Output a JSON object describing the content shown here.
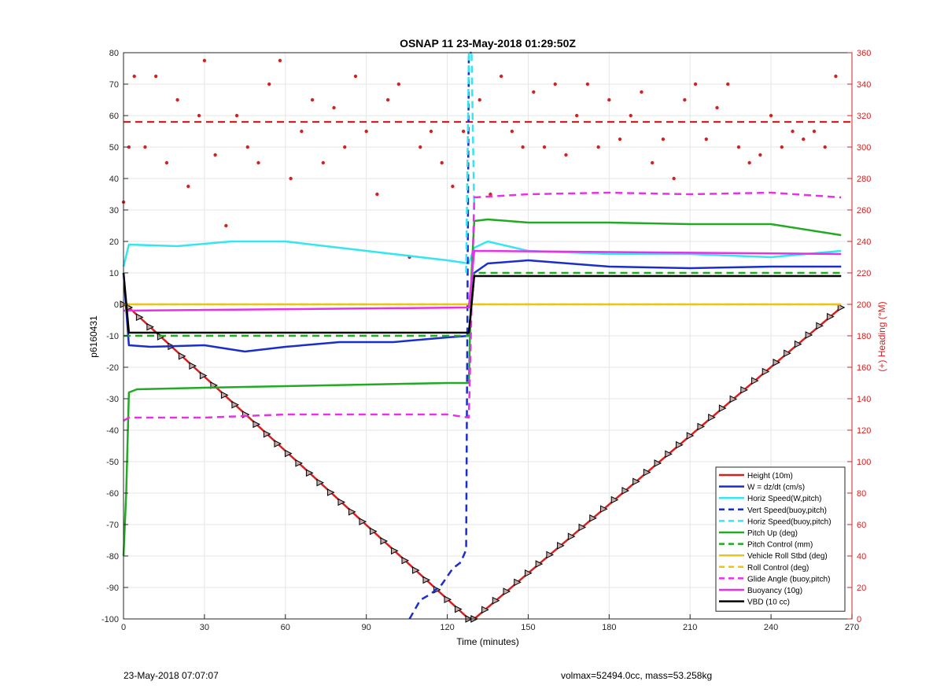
{
  "footer": {
    "left": "23-May-2018 07:07:07",
    "right": "volmax=52494.0cc, mass=53.258kg"
  },
  "chart_data": {
    "type": "line",
    "title": "OSNAP 11 23-May-2018 01:29:50Z",
    "xlabel": "Time (minutes)",
    "ylabel": "p6160431",
    "y2label": "(+) Heading (°M)",
    "xlim": [
      0,
      270
    ],
    "ylim": [
      -100,
      80
    ],
    "y2lim": [
      0,
      360
    ],
    "xticks": [
      0,
      30,
      60,
      90,
      120,
      150,
      180,
      210,
      240,
      270
    ],
    "yticks": [
      -100,
      -90,
      -80,
      -70,
      -60,
      -50,
      -40,
      -30,
      -20,
      -10,
      0,
      10,
      20,
      30,
      40,
      50,
      60,
      70,
      80
    ],
    "y2ticks": [
      0,
      20,
      40,
      60,
      80,
      100,
      120,
      140,
      160,
      180,
      200,
      220,
      240,
      260,
      280,
      300,
      320,
      340,
      360
    ],
    "grid": true,
    "legend_position": "bottom-right",
    "series": [
      {
        "name": "Height (10m)",
        "color": "#d62020",
        "style": "solid",
        "markers": "triangle",
        "x": [
          0,
          2,
          128,
          130,
          266
        ],
        "y": [
          0,
          -1,
          -100,
          -100,
          -1
        ]
      },
      {
        "name": "W = dz/dt (cm/s)",
        "color": "#1a2ecc",
        "style": "solid",
        "x": [
          0,
          2,
          10,
          30,
          45,
          60,
          80,
          100,
          120,
          128,
          130,
          135,
          150,
          180,
          210,
          240,
          266
        ],
        "y": [
          10,
          -13,
          -13.5,
          -13,
          -15,
          -13.5,
          -12,
          -12,
          -10.5,
          -10,
          10,
          13,
          14,
          12,
          11.5,
          12,
          12
        ]
      },
      {
        "name": "Horiz Speed(W,pitch)",
        "color": "#33e6f0",
        "style": "solid",
        "x": [
          0,
          2,
          20,
          40,
          60,
          80,
          100,
          120,
          128,
          130,
          135,
          150,
          180,
          210,
          240,
          266
        ],
        "y": [
          12,
          19,
          18.5,
          20,
          20,
          18,
          16,
          14,
          13,
          18,
          20,
          17,
          16,
          16,
          15,
          17
        ]
      },
      {
        "name": "Vert Speed(buoy,pitch)",
        "color": "#1a2ecc",
        "style": "dashed",
        "x": [
          106,
          110,
          114,
          118,
          122,
          125,
          127,
          128,
          129
        ],
        "y": [
          -100,
          -94,
          -92,
          -89,
          -84,
          -82,
          -78,
          80,
          80
        ]
      },
      {
        "name": "Horiz Speed(buoy,pitch)",
        "color": "#33e6f0",
        "style": "dashed",
        "x": [
          127,
          128,
          129,
          130
        ],
        "y": [
          10,
          80,
          80,
          30
        ]
      },
      {
        "name": "Pitch Up (deg)",
        "color": "#22aa22",
        "style": "solid",
        "x": [
          0,
          1,
          2,
          5,
          30,
          60,
          90,
          120,
          128,
          129,
          130,
          135,
          150,
          180,
          210,
          240,
          266
        ],
        "y": [
          -80,
          -60,
          -28,
          -27,
          -26.5,
          -26,
          -25.5,
          -25,
          -25,
          10,
          26.5,
          27,
          26,
          26,
          25.5,
          25.5,
          22
        ]
      },
      {
        "name": "Pitch Control (mm)",
        "color": "#22aa22",
        "style": "dashed",
        "x": [
          0,
          2,
          128,
          130,
          266
        ],
        "y": [
          -10,
          -10,
          -10,
          10,
          10
        ]
      },
      {
        "name": "Vehicle Roll Stbd (deg)",
        "color": "#e6c619",
        "style": "solid",
        "x": [
          0,
          2,
          128,
          130,
          266
        ],
        "y": [
          0,
          0,
          0,
          0,
          0
        ]
      },
      {
        "name": "Roll Control (deg)",
        "color": "#e6c619",
        "style": "dashed",
        "x": [
          0,
          266
        ],
        "y": [
          0,
          0
        ]
      },
      {
        "name": "Glide Angle (buoy,pitch)",
        "color": "#e632e6",
        "style": "dashed",
        "x": [
          0,
          2,
          30,
          60,
          90,
          120,
          128,
          130,
          150,
          180,
          210,
          240,
          266
        ],
        "y": [
          -37,
          -36,
          -36,
          -35,
          -35,
          -35,
          -36,
          34,
          35,
          35.5,
          35,
          35.5,
          34
        ]
      },
      {
        "name": "Buoyancy (10g)",
        "color": "#e632e6",
        "style": "solid",
        "x": [
          0,
          2,
          128,
          130,
          266
        ],
        "y": [
          -2,
          -2,
          -1,
          17,
          16
        ]
      },
      {
        "name": "VBD (10 cc)",
        "color": "#000000",
        "style": "solid",
        "x": [
          0,
          2,
          128,
          130,
          266
        ],
        "y": [
          10,
          -9,
          -9,
          9,
          9
        ]
      }
    ],
    "heading": {
      "color": "#d62020",
      "reference_deg": 316,
      "points_x": [
        0,
        2,
        4,
        8,
        12,
        16,
        20,
        24,
        28,
        30,
        34,
        38,
        42,
        46,
        50,
        54,
        58,
        62,
        66,
        70,
        74,
        78,
        82,
        86,
        90,
        94,
        98,
        102,
        106,
        110,
        114,
        118,
        122,
        126,
        132,
        136,
        140,
        144,
        148,
        152,
        156,
        160,
        164,
        168,
        172,
        176,
        180,
        184,
        188,
        192,
        196,
        200,
        204,
        208,
        212,
        216,
        220,
        224,
        228,
        232,
        236,
        240,
        244,
        248,
        252,
        256,
        260,
        264
      ],
      "points_y": [
        265,
        300,
        345,
        300,
        345,
        290,
        330,
        275,
        320,
        355,
        295,
        250,
        320,
        300,
        290,
        340,
        355,
        280,
        310,
        330,
        290,
        325,
        300,
        345,
        310,
        270,
        330,
        340,
        230,
        300,
        310,
        290,
        275,
        310,
        330,
        270,
        345,
        310,
        300,
        335,
        300,
        340,
        295,
        320,
        340,
        300,
        330,
        305,
        320,
        335,
        290,
        305,
        280,
        330,
        340,
        305,
        325,
        340,
        300,
        290,
        295,
        320,
        300,
        310,
        305,
        310,
        300,
        345
      ]
    }
  }
}
